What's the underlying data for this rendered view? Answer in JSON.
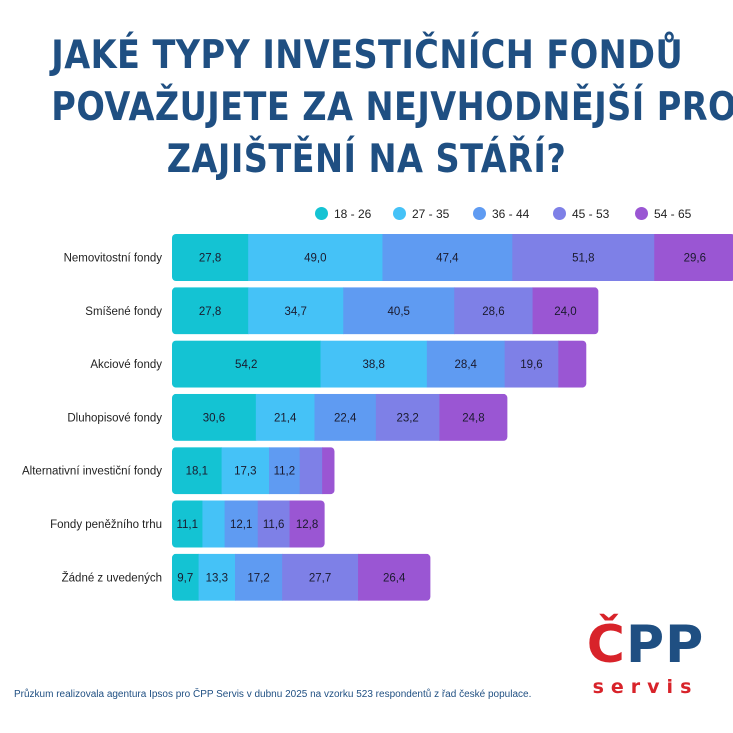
{
  "title_lines": [
    "JAKÉ TYPY INVESTIČNÍCH FONDŮ",
    "POVAŽUJETE ZA NEJVHODNĚJŠÍ PRO",
    "ZAJIŠTĚNÍ NA STÁŘÍ?"
  ],
  "footnote": "Průzkum realizovala agentura Ipsos pro ČPP Servis v dubnu 2025 na vzorku 523 respondentů z řad české populace.",
  "logo": {
    "main_c": "Č",
    "main_pp": "PP",
    "sub": "servis"
  },
  "colors": {
    "title": "#1f4f82",
    "series": [
      "#14c3d3",
      "#45c2f7",
      "#5f9bf2",
      "#7e80e7",
      "#9a56d3"
    ]
  },
  "chart_data": {
    "type": "bar",
    "orientation": "horizontal",
    "stacked": true,
    "legend_position": "top",
    "grid": false,
    "categories": [
      "Nemovitostní fondy",
      "Smíšené fondy",
      "Akciové fondy",
      "Dluhopisové fondy",
      "Alternativní investiční fondy",
      "Fondy peněžního trhu",
      "Žádné z uvedených"
    ],
    "series": [
      {
        "name": "18 - 26",
        "values": [
          27.8,
          27.8,
          54.2,
          30.6,
          18.1,
          11.1,
          9.7
        ]
      },
      {
        "name": "27 - 35",
        "values": [
          49.0,
          34.7,
          38.8,
          21.4,
          17.3,
          8.1,
          13.3
        ]
      },
      {
        "name": "36 - 44",
        "values": [
          47.4,
          40.5,
          28.4,
          22.4,
          11.2,
          12.1,
          17.2
        ]
      },
      {
        "name": "45 - 53",
        "values": [
          51.8,
          28.6,
          19.6,
          23.2,
          8.2,
          11.6,
          27.7
        ]
      },
      {
        "name": "54 - 65",
        "values": [
          29.6,
          24.0,
          10.2,
          24.8,
          4.5,
          12.8,
          26.4
        ]
      }
    ],
    "value_labels": [
      [
        "27,8",
        "49,0",
        "47,4",
        "51,8",
        "29,6"
      ],
      [
        "27,8",
        "34,7",
        "40,5",
        "28,6",
        "24,0"
      ],
      [
        "54,2",
        "38,8",
        "28,4",
        "19,6",
        ""
      ],
      [
        "30,6",
        "21,4",
        "22,4",
        "23,2",
        "24,8"
      ],
      [
        "18,1",
        "17,3",
        "11,2",
        "",
        ""
      ],
      [
        "11,1",
        "",
        "12,1",
        "11,6",
        "12,8"
      ],
      [
        "9,7",
        "13,3",
        "17,2",
        "27,7",
        "26,4"
      ]
    ]
  }
}
